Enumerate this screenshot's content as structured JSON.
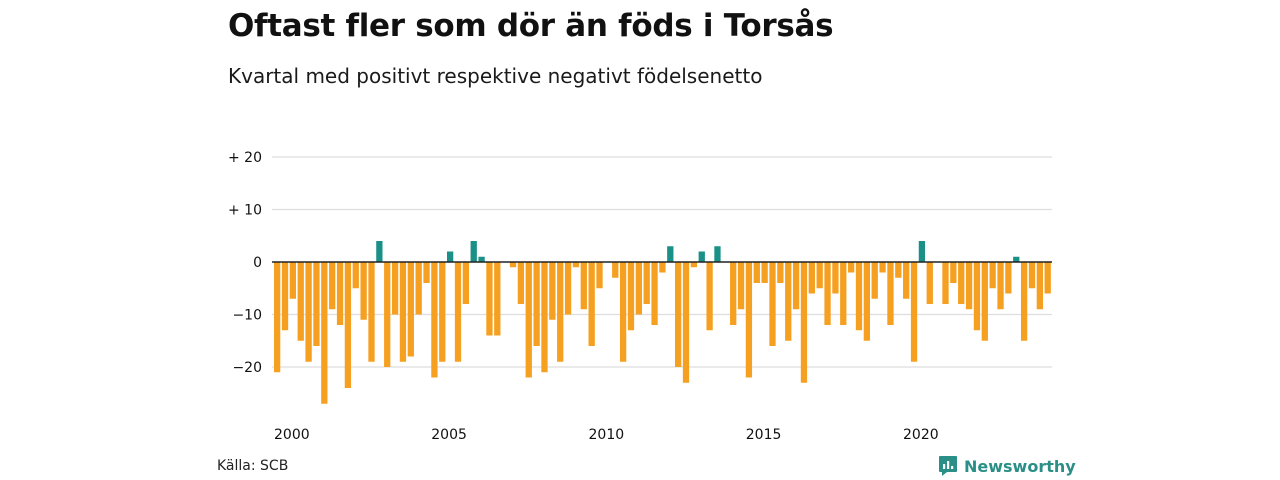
{
  "title": "Oftast fler som dör än föds i Torsås",
  "subtitle": "Kvartal med positivt respektive negativt födelsenetto",
  "source": "Källa: SCB",
  "brand": {
    "name": "Newsworthy",
    "icon": "newsworthy-logo-icon"
  },
  "colors": {
    "positive": "#1a9086",
    "negative": "#f5a020",
    "grid": "#dddddd",
    "zero": "#222222"
  },
  "chart_data": {
    "type": "bar",
    "title": "Oftast fler som dör än föds i Torsås",
    "subtitle": "Kvartal med positivt respektive negativt födelsenetto",
    "xlabel": "",
    "ylabel": "",
    "ylim": [
      -28,
      20
    ],
    "yticks": [
      20,
      10,
      0,
      -10,
      -20
    ],
    "ytick_labels": [
      "+ 20",
      "+ 10",
      "0",
      "−10",
      "−20"
    ],
    "xticks": [
      2000,
      2005,
      2010,
      2015,
      2020
    ],
    "xtick_labels": [
      "2000",
      "2005",
      "2010",
      "2015",
      "2020"
    ],
    "x_start": "2000-Q1",
    "x_end": "2024-Q3",
    "grid": true,
    "legend": "none",
    "categories": [
      "2000-Q1",
      "2000-Q2",
      "2000-Q3",
      "2000-Q4",
      "2001-Q1",
      "2001-Q2",
      "2001-Q3",
      "2001-Q4",
      "2002-Q1",
      "2002-Q2",
      "2002-Q3",
      "2002-Q4",
      "2003-Q1",
      "2003-Q2",
      "2003-Q3",
      "2003-Q4",
      "2004-Q1",
      "2004-Q2",
      "2004-Q3",
      "2004-Q4",
      "2005-Q1",
      "2005-Q2",
      "2005-Q3",
      "2005-Q4",
      "2006-Q1",
      "2006-Q2",
      "2006-Q3",
      "2006-Q4",
      "2007-Q1",
      "2007-Q2",
      "2007-Q3",
      "2007-Q4",
      "2008-Q1",
      "2008-Q2",
      "2008-Q3",
      "2008-Q4",
      "2009-Q1",
      "2009-Q2",
      "2009-Q3",
      "2009-Q4",
      "2010-Q1",
      "2010-Q2",
      "2010-Q3",
      "2010-Q4",
      "2011-Q1",
      "2011-Q2",
      "2011-Q3",
      "2011-Q4",
      "2012-Q1",
      "2012-Q2",
      "2012-Q3",
      "2012-Q4",
      "2013-Q1",
      "2013-Q2",
      "2013-Q3",
      "2013-Q4",
      "2014-Q1",
      "2014-Q2",
      "2014-Q3",
      "2014-Q4",
      "2015-Q1",
      "2015-Q2",
      "2015-Q3",
      "2015-Q4",
      "2016-Q1",
      "2016-Q2",
      "2016-Q3",
      "2016-Q4",
      "2017-Q1",
      "2017-Q2",
      "2017-Q3",
      "2017-Q4",
      "2018-Q1",
      "2018-Q2",
      "2018-Q3",
      "2018-Q4",
      "2019-Q1",
      "2019-Q2",
      "2019-Q3",
      "2019-Q4",
      "2020-Q1",
      "2020-Q2",
      "2020-Q3",
      "2020-Q4",
      "2021-Q1",
      "2021-Q2",
      "2021-Q3",
      "2021-Q4",
      "2022-Q1",
      "2022-Q2",
      "2022-Q3",
      "2022-Q4",
      "2023-Q1",
      "2023-Q2",
      "2023-Q3",
      "2023-Q4",
      "2024-Q1",
      "2024-Q2",
      "2024-Q3"
    ],
    "values": [
      -21,
      -13,
      -7,
      -15,
      -19,
      -16,
      -27,
      -9,
      -12,
      -24,
      -5,
      -11,
      -19,
      4,
      -20,
      -10,
      -19,
      -18,
      -10,
      -4,
      -22,
      -19,
      2,
      -19,
      -8,
      4,
      1,
      -14,
      -14,
      0,
      -1,
      -8,
      -22,
      -16,
      -21,
      -11,
      -19,
      -10,
      -1,
      -9,
      -16,
      -5,
      0,
      -3,
      -19,
      -13,
      -10,
      -8,
      -12,
      -2,
      3,
      -20,
      -23,
      -1,
      2,
      -13,
      3,
      0,
      -12,
      -9,
      -22,
      -4,
      -4,
      -16,
      -4,
      -15,
      -9,
      -23,
      -6,
      -5,
      -12,
      -6,
      -12,
      -2,
      -13,
      -15,
      -7,
      -2,
      -12,
      -3,
      -7,
      -19,
      4,
      -8,
      0,
      -8,
      -4,
      -8,
      -9,
      -13,
      -15,
      -5,
      -9,
      -6,
      1,
      -15,
      -5,
      -9,
      -6
    ]
  }
}
